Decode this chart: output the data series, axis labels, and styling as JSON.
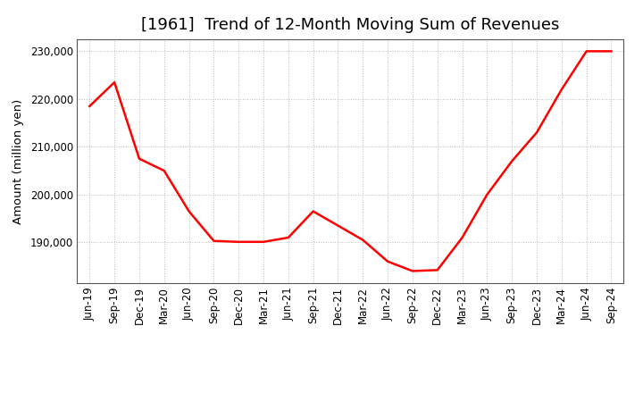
{
  "title": "[1961]  Trend of 12-Month Moving Sum of Revenues",
  "ylabel": "Amount (million yen)",
  "line_color": "#ff0000",
  "line_width": 1.8,
  "background_color": "#ffffff",
  "grid_color": "#bbbbbb",
  "x_labels": [
    "Jun-19",
    "Sep-19",
    "Dec-19",
    "Mar-20",
    "Jun-20",
    "Sep-20",
    "Dec-20",
    "Mar-21",
    "Jun-21",
    "Sep-21",
    "Dec-21",
    "Mar-22",
    "Jun-22",
    "Sep-22",
    "Dec-22",
    "Mar-23",
    "Jun-23",
    "Sep-23",
    "Dec-23",
    "Mar-24",
    "Jun-24",
    "Sep-24"
  ],
  "y_values": [
    218500,
    223500,
    207500,
    205000,
    196500,
    190300,
    190100,
    190100,
    191000,
    196500,
    193500,
    190500,
    186000,
    184000,
    184200,
    191000,
    200000,
    207000,
    213000,
    222000,
    230000,
    230000
  ],
  "ylim_min": 181500,
  "ylim_max": 232500,
  "yticks": [
    190000,
    200000,
    210000,
    220000,
    230000
  ],
  "title_fontsize": 13,
  "tick_fontsize": 8.5,
  "ylabel_fontsize": 9.5
}
